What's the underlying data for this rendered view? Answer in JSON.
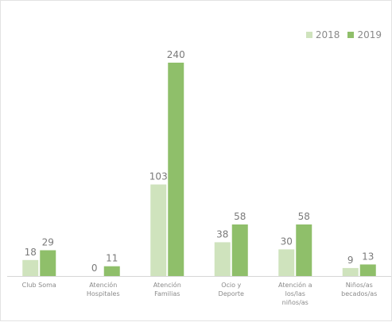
{
  "chart_data": {
    "type": "bar",
    "title": "",
    "xlabel": "",
    "ylabel": "",
    "ylim": [
      0,
      260
    ],
    "grid": false,
    "legend_position": "top-right",
    "categories": [
      [
        "Club Soma"
      ],
      [
        "Atención",
        "Hospitales"
      ],
      [
        "Atención",
        "Familias"
      ],
      [
        "Ocio y",
        "Deporte"
      ],
      [
        "Atención a",
        "los/las",
        "niños/as"
      ],
      [
        "Niños/as",
        "becados/as"
      ]
    ],
    "series": [
      {
        "name": "2018",
        "color": "#cfe3bd",
        "values": [
          18,
          0,
          103,
          38,
          30,
          9
        ]
      },
      {
        "name": "2019",
        "color": "#8fbf6a",
        "values": [
          29,
          11,
          240,
          58,
          58,
          13
        ]
      }
    ]
  }
}
